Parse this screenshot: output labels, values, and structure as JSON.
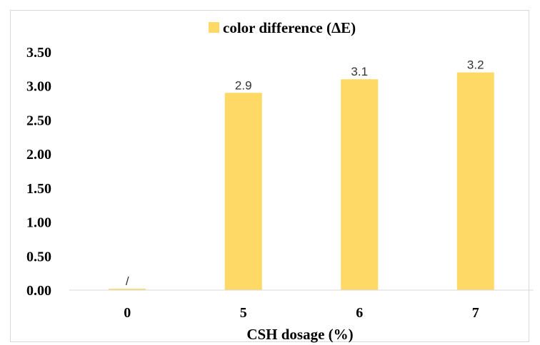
{
  "chart_data": {
    "type": "bar",
    "categories": [
      "0",
      "5",
      "6",
      "7"
    ],
    "series": [
      {
        "name": "color difference (ΔE)",
        "values": [
          0.02,
          2.9,
          3.1,
          3.2
        ],
        "data_labels": [
          "/",
          "2.9",
          "3.1",
          "3.2"
        ],
        "color": "#FFD966"
      }
    ],
    "xlabel": "CSH dosage (%)",
    "ylabel": "",
    "ylim": [
      0,
      3.5
    ],
    "yticks": [
      "0.00",
      "0.50",
      "1.00",
      "1.50",
      "2.00",
      "2.50",
      "3.00",
      "3.50"
    ],
    "grid": false,
    "legend_position": "top"
  }
}
